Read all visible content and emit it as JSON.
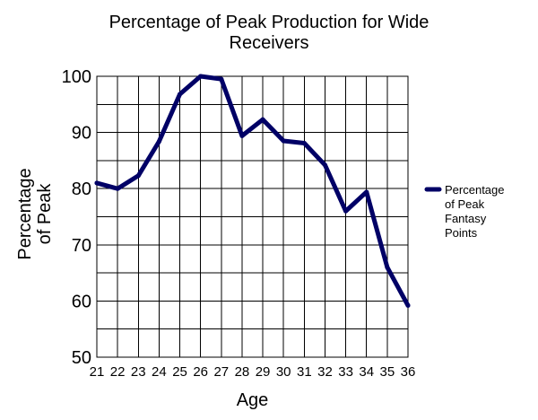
{
  "chart_data": {
    "type": "line",
    "title": "Percentage of Peak Production for Wide Receivers",
    "title_lines": [
      "Percentage of Peak Production for Wide",
      "Receivers"
    ],
    "xlabel": "Age",
    "ylabel": "Percentage of Peak",
    "ylabel_lines": [
      "Percentage",
      "of Peak"
    ],
    "x": [
      21,
      22,
      23,
      24,
      25,
      26,
      27,
      28,
      29,
      30,
      31,
      32,
      33,
      34,
      35,
      36
    ],
    "ylim": [
      50,
      100
    ],
    "y_ticks": [
      50,
      60,
      70,
      80,
      90,
      100
    ],
    "y_minor_step": 5,
    "grid": true,
    "legend_position": "right",
    "series": [
      {
        "name": "Percentage of Peak Fantasy Points",
        "name_lines": [
          "Percentage",
          "of Peak",
          "Fantasy",
          "Points"
        ],
        "color": "#000066",
        "values": [
          81,
          80,
          82.3,
          88.4,
          96.8,
          100,
          99.5,
          89.4,
          92.3,
          88.5,
          88.1,
          84.2,
          76,
          79.4,
          66,
          59.2
        ]
      }
    ]
  }
}
